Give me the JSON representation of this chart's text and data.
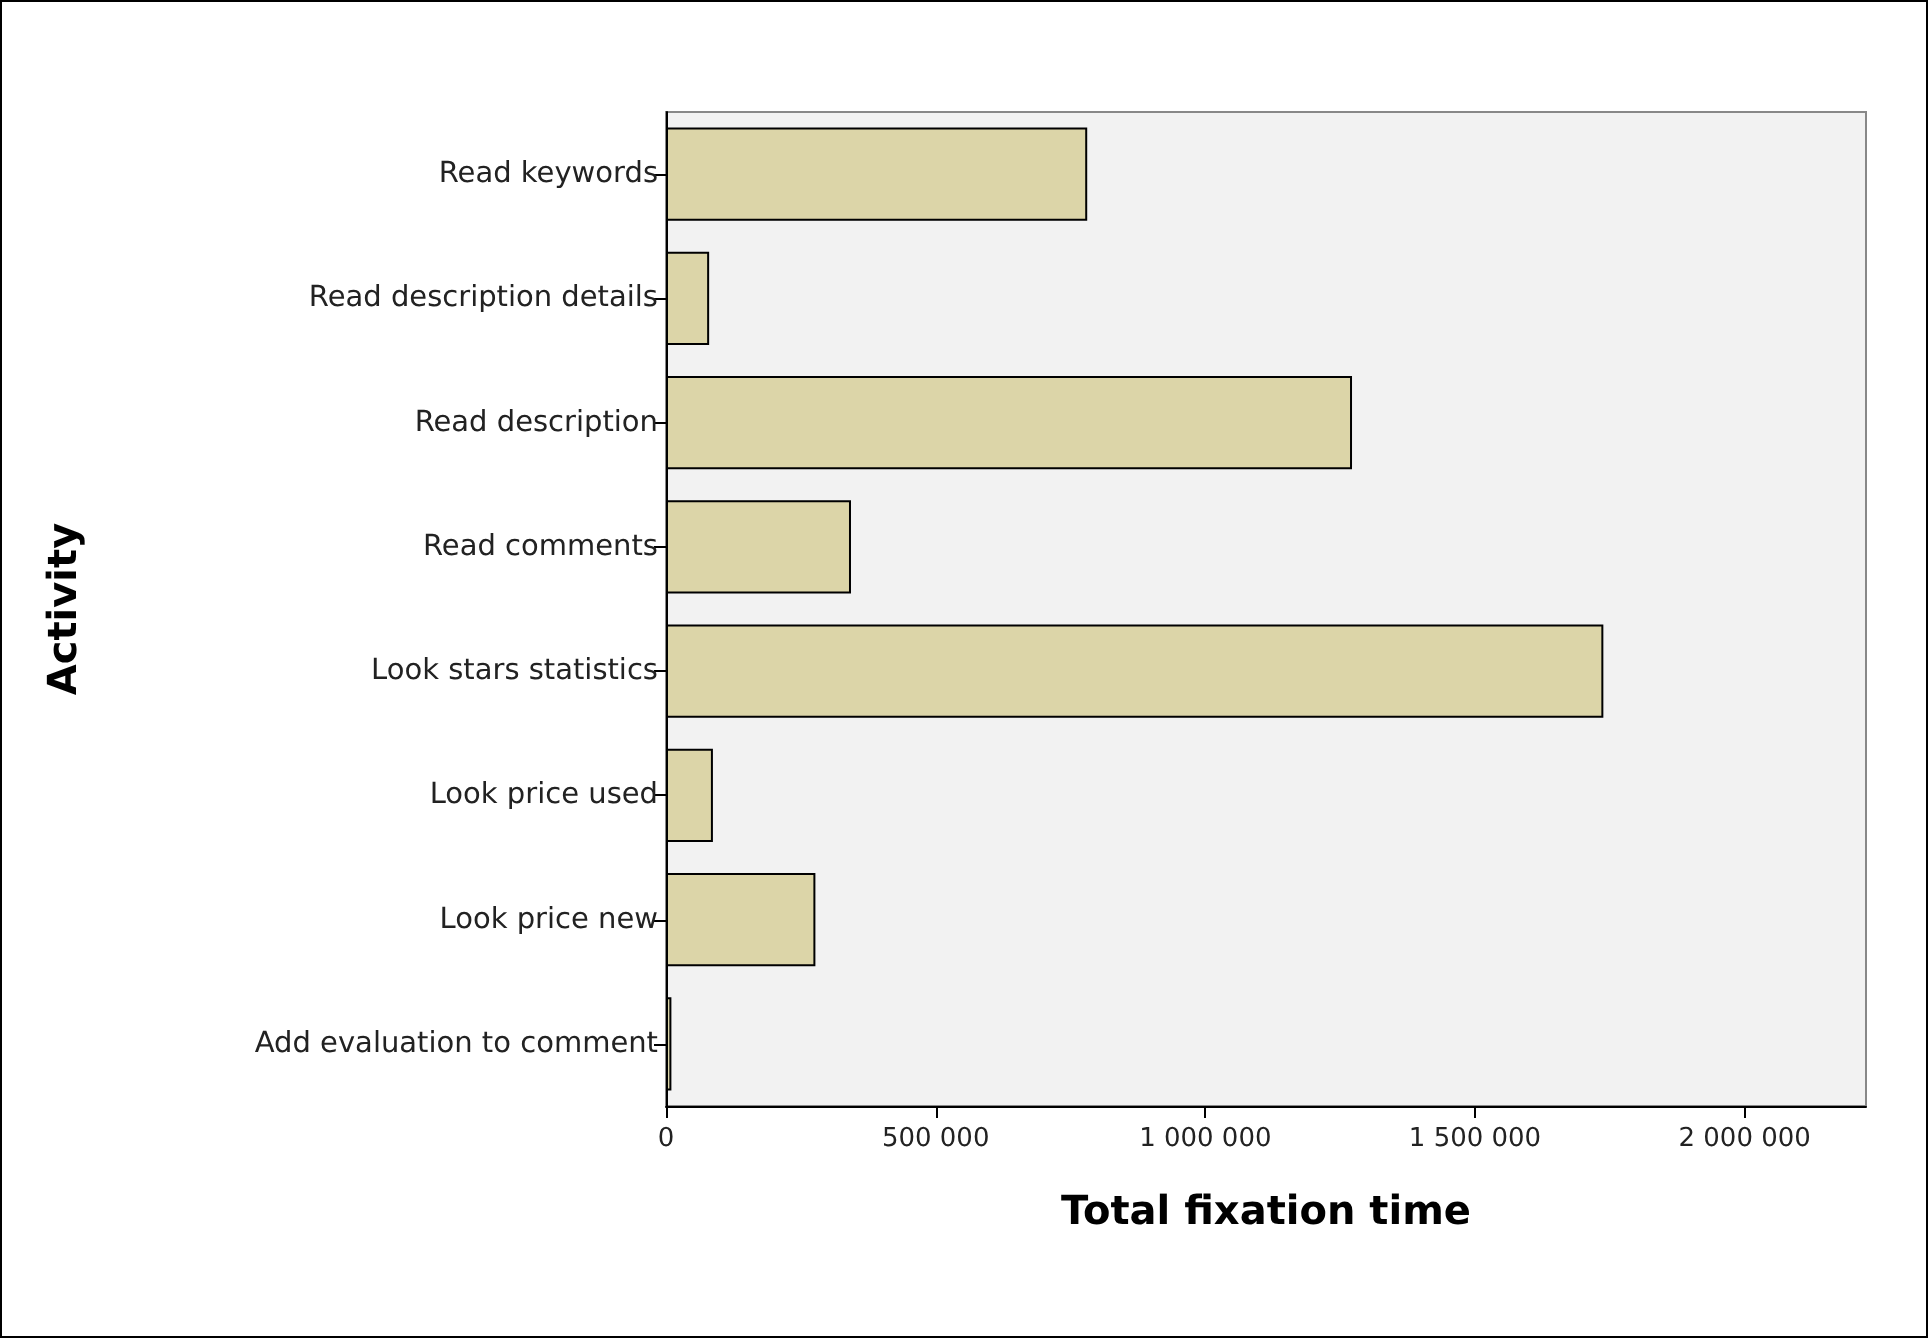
{
  "chart_data": {
    "type": "bar",
    "orientation": "horizontal",
    "xlabel": "Total fixation time",
    "ylabel": "Activity",
    "categories": [
      "Read keywords",
      "Read description details",
      "Read description",
      "Read comments",
      "Look stars statistics",
      "Look price used",
      "Look price new",
      "Add evaluation to comment"
    ],
    "values": [
      781000,
      80000,
      1272000,
      343000,
      1738000,
      87000,
      277000,
      10000
    ],
    "color": "#dcd5a8",
    "xlim": [
      0,
      2225000
    ],
    "xticks": [
      {
        "value": 0,
        "label": "0"
      },
      {
        "value": 500000,
        "label": "500 000"
      },
      {
        "value": 1000000,
        "label": "1 000 000"
      },
      {
        "value": 1500000,
        "label": "1 500 000"
      },
      {
        "value": 2000000,
        "label": "2 000 000"
      }
    ],
    "grid": false
  }
}
